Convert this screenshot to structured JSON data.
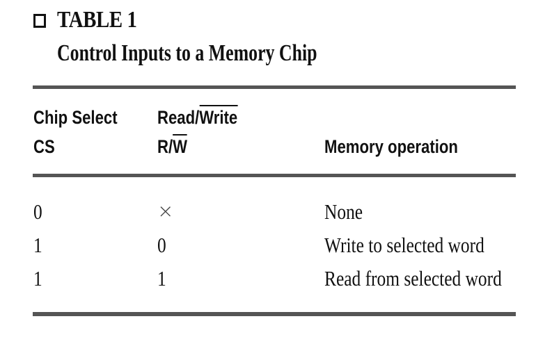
{
  "heading": {
    "label": "TABLE 1",
    "title": "Control Inputs to a Memory Chip"
  },
  "columns": {
    "cs": {
      "line1": "Chip Select",
      "line2": "CS"
    },
    "rw": {
      "line1_plain": "Read/",
      "line1_over": "Write",
      "line2_plain": "R/",
      "line2_over": "W"
    },
    "op": {
      "label": "Memory operation"
    }
  },
  "rows": [
    {
      "cs": "0",
      "rw": "×",
      "op": "None"
    },
    {
      "cs": "1",
      "rw": "0",
      "op": "Write to selected word"
    },
    {
      "cs": "1",
      "rw": "1",
      "op": "Read from selected word"
    }
  ]
}
